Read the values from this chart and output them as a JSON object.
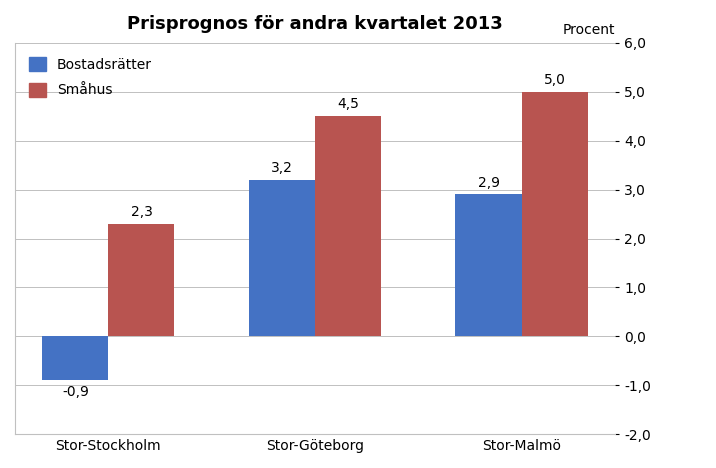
{
  "title": "Prisprognos för andra kvartalet 2013",
  "categories": [
    "Stor-Stockholm",
    "Stor-Göteborg",
    "Stor-Malmö"
  ],
  "bostadsratter": [
    -0.9,
    3.2,
    2.9
  ],
  "smahus": [
    2.3,
    4.5,
    5.0
  ],
  "bostadsratter_labels": [
    "-0,9",
    "3,2",
    "2,9"
  ],
  "smahus_labels": [
    "2,3",
    "4,5",
    "5,0"
  ],
  "color_bostadsratter": "#4472C4",
  "color_smahus": "#B85450",
  "ylabel_right": "Procent",
  "ylim": [
    -2.0,
    6.0
  ],
  "yticks": [
    -2.0,
    -1.0,
    0.0,
    1.0,
    2.0,
    3.0,
    4.0,
    5.0,
    6.0
  ],
  "ytick_labels": [
    "-2,0",
    "-1,0",
    "0,0",
    "1,0",
    "2,0",
    "3,0",
    "4,0",
    "5,0",
    "6,0"
  ],
  "legend_bostadsratter": "Bostadsrätter",
  "legend_smahus": "Småhus",
  "bar_width": 0.32,
  "label_fontsize": 10,
  "title_fontsize": 13,
  "tick_fontsize": 10,
  "background_color": "#FFFFFF",
  "plot_bg_color": "#FFFFFF",
  "grid_color": "#C0C0C0"
}
